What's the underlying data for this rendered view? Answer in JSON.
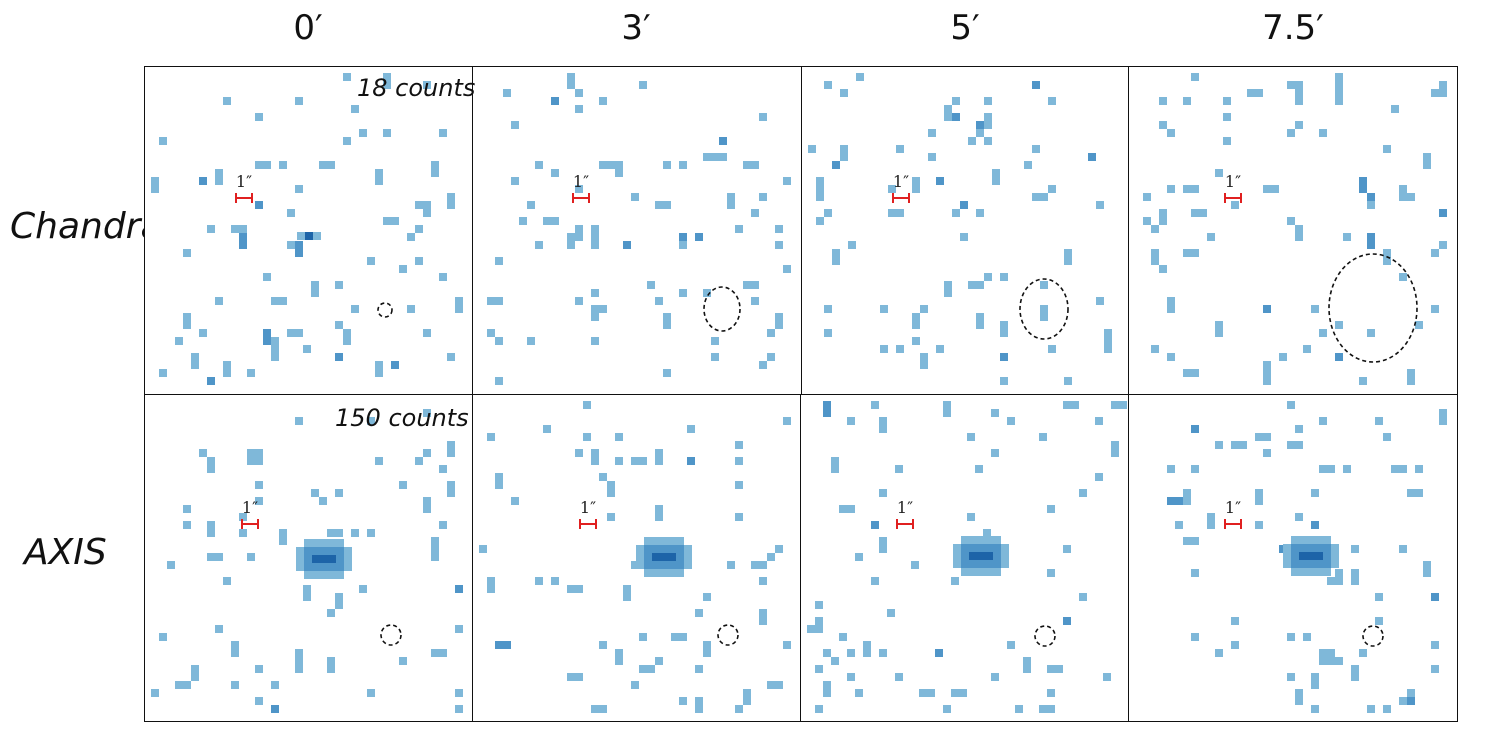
{
  "columns": [
    "0′",
    "3′",
    "5′",
    "7.5′"
  ],
  "rows": [
    "Chandra",
    "AXIS"
  ],
  "counts_labels": {
    "chandra": "18 counts",
    "axis": "150 counts"
  },
  "scale_label": "1″",
  "colors": {
    "light": "#7fb8d9",
    "medium": "#4f95c8",
    "dark": "#1d64a8",
    "scale_bar": "#e02020",
    "frame": "#111111"
  },
  "panels": [
    {
      "id": "chandra-0",
      "row": "Chandra",
      "column": "0′",
      "source": "faint",
      "psf": "small-circle",
      "counts": "18 counts"
    },
    {
      "id": "chandra-3",
      "row": "Chandra",
      "column": "3′",
      "source": "none",
      "psf": "small-ellipse"
    },
    {
      "id": "chandra-5",
      "row": "Chandra",
      "column": "5′",
      "source": "none",
      "psf": "medium-ellipse"
    },
    {
      "id": "chandra-7.5",
      "row": "Chandra",
      "column": "7.5′",
      "source": "none",
      "psf": "large-ellipse"
    },
    {
      "id": "axis-0",
      "row": "AXIS",
      "column": "0′",
      "source": "bright",
      "psf": "small-circle",
      "counts": "150 counts"
    },
    {
      "id": "axis-3",
      "row": "AXIS",
      "column": "3′",
      "source": "bright",
      "psf": "small-circle"
    },
    {
      "id": "axis-5",
      "row": "AXIS",
      "column": "5′",
      "source": "bright",
      "psf": "small-circle"
    },
    {
      "id": "axis-7.5",
      "row": "AXIS",
      "column": "7.5′",
      "source": "bright",
      "psf": "small-circle"
    }
  ]
}
